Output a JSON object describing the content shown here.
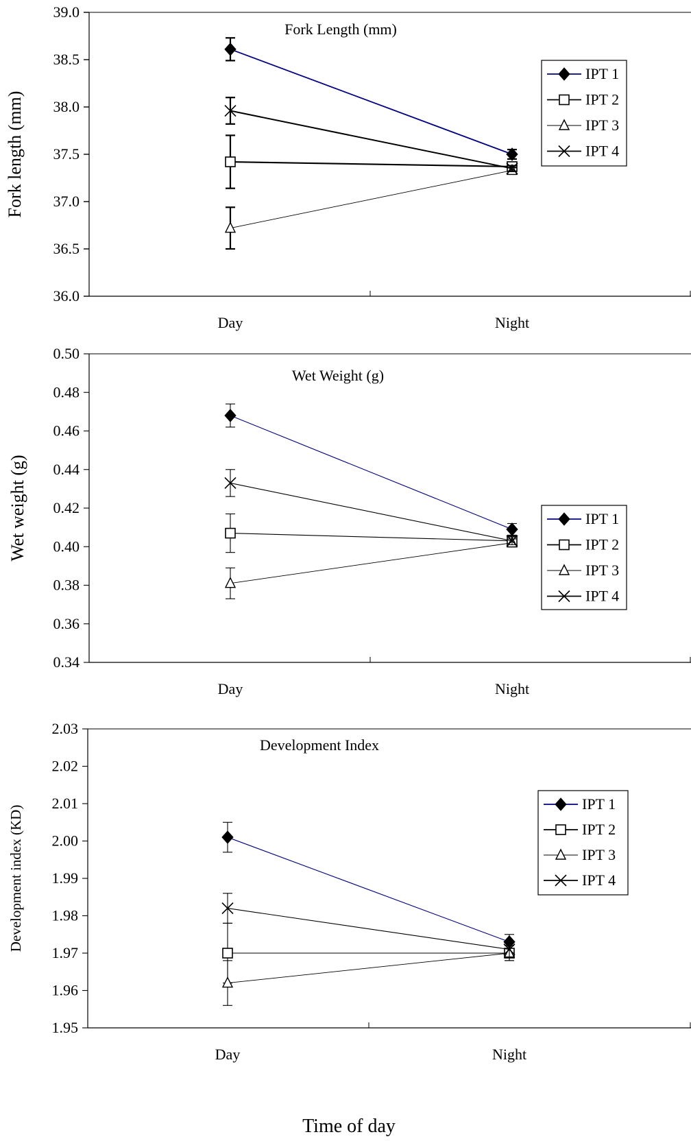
{
  "chart_data": [
    {
      "type": "line",
      "title": "Fork Length (mm)",
      "xlabel": "",
      "ylabel": "Fork length (mm)",
      "categories": [
        "Day",
        "Night"
      ],
      "ylim": [
        36.0,
        39.0
      ],
      "yticks": [
        "36.0",
        "36.5",
        "37.0",
        "37.5",
        "38.0",
        "38.5",
        "39.0"
      ],
      "grid": false,
      "legend_position": "top-right",
      "series": [
        {
          "name": "IPT 1",
          "marker": "diamond-filled",
          "color": "#000080",
          "values": [
            38.61,
            37.5
          ],
          "errors": [
            0.12,
            0.05
          ]
        },
        {
          "name": "IPT 2",
          "marker": "square-open",
          "color": "#000000",
          "values": [
            37.42,
            37.37
          ],
          "errors": [
            0.28,
            0.04
          ]
        },
        {
          "name": "IPT 3",
          "marker": "triangle-open",
          "color": "#000000",
          "values": [
            36.72,
            37.33
          ],
          "errors": [
            0.22,
            0.03
          ]
        },
        {
          "name": "IPT 4",
          "marker": "x",
          "color": "#000000",
          "values": [
            37.96,
            37.35
          ],
          "errors": [
            0.14,
            0.03
          ]
        }
      ]
    },
    {
      "type": "line",
      "title": "Wet Weight  (g)",
      "xlabel": "",
      "ylabel": "Wet weight (g)",
      "categories": [
        "Day",
        "Night"
      ],
      "ylim": [
        0.34,
        0.5
      ],
      "yticks": [
        "0.34",
        "0.36",
        "0.38",
        "0.40",
        "0.42",
        "0.44",
        "0.46",
        "0.48",
        "0.50"
      ],
      "grid": false,
      "legend_position": "right",
      "series": [
        {
          "name": "IPT 1",
          "marker": "diamond-filled",
          "color": "#000080",
          "values": [
            0.468,
            0.409
          ],
          "errors": [
            0.006,
            0.003
          ]
        },
        {
          "name": "IPT 2",
          "marker": "square-open",
          "color": "#000000",
          "values": [
            0.407,
            0.403
          ],
          "errors": [
            0.01,
            0.002
          ]
        },
        {
          "name": "IPT 3",
          "marker": "triangle-open",
          "color": "#000000",
          "values": [
            0.381,
            0.402
          ],
          "errors": [
            0.008,
            0.002
          ]
        },
        {
          "name": "IPT 4",
          "marker": "x",
          "color": "#000000",
          "values": [
            0.433,
            0.403
          ],
          "errors": [
            0.007,
            0.002
          ]
        }
      ]
    },
    {
      "type": "line",
      "title": "Development Index",
      "xlabel": "Time of day",
      "ylabel": "Development index (KD)",
      "categories": [
        "Day",
        "Night"
      ],
      "ylim": [
        1.95,
        2.03
      ],
      "yticks": [
        "1.95",
        "1.96",
        "1.97",
        "1.98",
        "1.99",
        "2.00",
        "2.01",
        "2.02",
        "2.03"
      ],
      "grid": false,
      "legend_position": "right",
      "series": [
        {
          "name": "IPT 1",
          "marker": "diamond-filled",
          "color": "#000080",
          "values": [
            2.001,
            1.973
          ],
          "errors": [
            0.004,
            0.002
          ]
        },
        {
          "name": "IPT 2",
          "marker": "square-open",
          "color": "#000000",
          "values": [
            1.97,
            1.97
          ],
          "errors": [
            0.008,
            0.002
          ]
        },
        {
          "name": "IPT 3",
          "marker": "triangle-open",
          "color": "#000000",
          "values": [
            1.962,
            1.97
          ],
          "errors": [
            0.006,
            0.002
          ]
        },
        {
          "name": "IPT 4",
          "marker": "x",
          "color": "#000000",
          "values": [
            1.982,
            1.971
          ],
          "errors": [
            0.004,
            0.002
          ]
        }
      ]
    }
  ]
}
